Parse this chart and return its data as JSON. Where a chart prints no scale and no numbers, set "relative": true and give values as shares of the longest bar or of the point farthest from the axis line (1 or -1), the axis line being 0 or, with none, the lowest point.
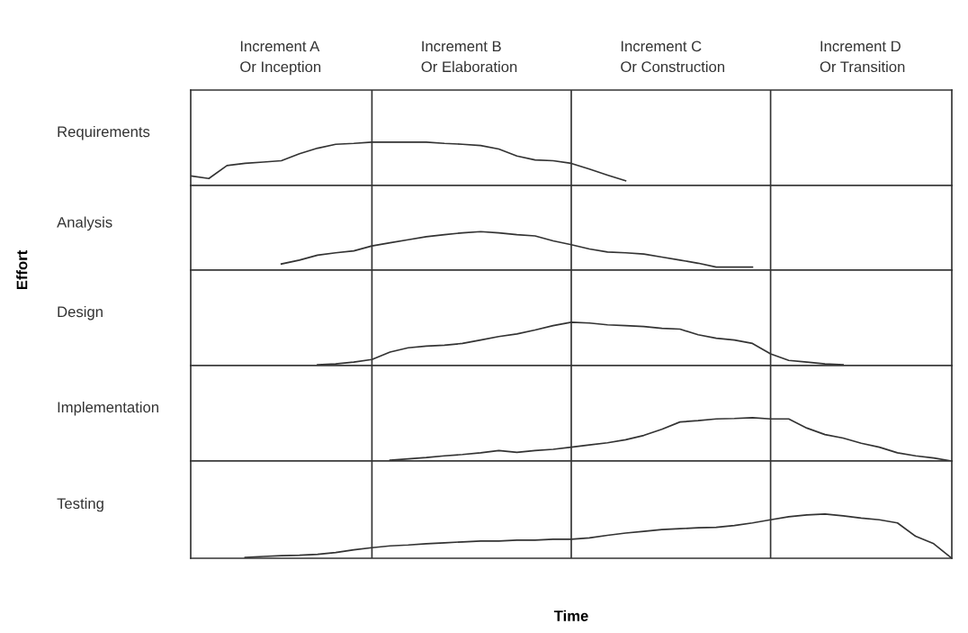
{
  "chart_data": [
    {
      "type": "line",
      "relative": true,
      "ylabel": "Requirements",
      "categories": [
        null,
        null,
        null,
        null,
        null,
        null,
        null,
        null,
        null,
        null,
        null,
        null,
        null,
        null,
        null,
        null,
        null,
        null,
        null,
        null,
        null,
        null,
        null,
        null,
        null,
        null,
        null,
        null,
        null,
        null,
        null,
        null,
        null,
        null,
        null,
        null,
        null,
        null,
        null,
        null,
        null,
        null,
        null
      ],
      "series": [
        {
          "color": "#333333",
          "values": [
            0.22,
            0.16,
            0.46,
            0.51,
            0.54,
            0.57,
            0.73,
            0.86,
            0.95,
            0.97,
            1,
            1,
            1,
            1,
            0.97,
            0.95,
            0.92,
            0.84,
            0.68,
            0.59,
            0.57,
            0.51,
            0.38,
            0.24,
            0.11,
            null,
            null,
            null,
            null,
            null,
            null,
            null,
            null,
            null,
            null,
            null,
            null,
            null,
            null,
            null,
            null,
            null,
            null
          ]
        }
      ],
      "grid": "x",
      "annotations": [
        "Increment A\nOr Inception",
        "Increment B\nOr Elaboration",
        "Increment C\nOr Construction",
        "Increment D\nOr Transition"
      ]
    },
    {
      "type": "line",
      "relative": true,
      "ylabel": "Analysis",
      "categories": [
        null,
        null,
        null,
        null,
        null,
        null,
        null,
        null,
        null,
        null,
        null,
        null,
        null,
        null,
        null,
        null,
        null,
        null,
        null,
        null,
        null,
        null,
        null,
        null,
        null,
        null,
        null,
        null,
        null,
        null,
        null,
        null,
        null,
        null,
        null,
        null,
        null,
        null,
        null,
        null,
        null,
        null,
        null
      ],
      "series": [
        {
          "color": "#333333",
          "values": [
            null,
            null,
            null,
            null,
            null,
            0.16,
            0.26,
            0.39,
            0.45,
            0.5,
            0.63,
            0.71,
            0.79,
            0.87,
            0.92,
            0.97,
            1,
            0.97,
            0.92,
            0.89,
            0.76,
            0.66,
            0.55,
            0.47,
            0.45,
            0.42,
            0.34,
            0.26,
            0.18,
            0.08,
            0.08,
            0.08,
            null,
            null,
            null,
            null,
            null,
            null,
            null,
            null,
            null,
            null,
            null
          ]
        }
      ],
      "grid": "x"
    },
    {
      "type": "line",
      "relative": true,
      "ylabel": "Design",
      "categories": [
        null,
        null,
        null,
        null,
        null,
        null,
        null,
        null,
        null,
        null,
        null,
        null,
        null,
        null,
        null,
        null,
        null,
        null,
        null,
        null,
        null,
        null,
        null,
        null,
        null,
        null,
        null,
        null,
        null,
        null,
        null,
        null,
        null,
        null,
        null,
        null,
        null,
        null,
        null,
        null,
        null,
        null,
        null
      ],
      "series": [
        {
          "color": "#333333",
          "values": [
            null,
            null,
            null,
            null,
            null,
            null,
            null,
            0.02,
            0.04,
            0.08,
            0.14,
            0.31,
            0.41,
            0.45,
            0.47,
            0.51,
            0.59,
            0.67,
            0.73,
            0.82,
            0.92,
            1,
            0.98,
            0.94,
            0.92,
            0.9,
            0.86,
            0.84,
            0.71,
            0.63,
            0.59,
            0.51,
            0.27,
            0.12,
            0.08,
            0.04,
            0.02,
            null,
            null,
            null,
            null,
            null,
            null
          ]
        }
      ],
      "grid": "x",
      "annotations": [
        "Effort"
      ]
    },
    {
      "type": "line",
      "relative": true,
      "ylabel": "Implementation",
      "categories": [
        null,
        null,
        null,
        null,
        null,
        null,
        null,
        null,
        null,
        null,
        null,
        null,
        null,
        null,
        null,
        null,
        null,
        null,
        null,
        null,
        null,
        null,
        null,
        null,
        null,
        null,
        null,
        null,
        null,
        null,
        null,
        null,
        null,
        null,
        null,
        null,
        null,
        null,
        null,
        null,
        null,
        null,
        null
      ],
      "series": [
        {
          "color": "#333333",
          "values": [
            null,
            null,
            null,
            null,
            null,
            null,
            null,
            null,
            null,
            null,
            null,
            0.02,
            0.05,
            0.08,
            0.12,
            0.15,
            0.19,
            0.24,
            0.2,
            0.24,
            0.27,
            0.32,
            0.37,
            0.42,
            0.49,
            0.59,
            0.73,
            0.9,
            0.93,
            0.97,
            0.98,
            1,
            0.97,
            0.97,
            0.76,
            0.61,
            0.53,
            0.41,
            0.32,
            0.19,
            0.12,
            0.07,
            0
          ]
        }
      ],
      "grid": "x"
    },
    {
      "type": "line",
      "relative": true,
      "ylabel": "Testing",
      "xlabel": "Time",
      "categories": [
        null,
        null,
        null,
        null,
        null,
        null,
        null,
        null,
        null,
        null,
        null,
        null,
        null,
        null,
        null,
        null,
        null,
        null,
        null,
        null,
        null,
        null,
        null,
        null,
        null,
        null,
        null,
        null,
        null,
        null,
        null,
        null,
        null,
        null,
        null,
        null,
        null,
        null,
        null,
        null,
        null,
        null,
        null
      ],
      "series": [
        {
          "color": "#333333",
          "values": [
            null,
            null,
            null,
            0.02,
            0.04,
            0.06,
            0.07,
            0.09,
            0.13,
            0.19,
            0.24,
            0.28,
            0.3,
            0.33,
            0.35,
            0.37,
            0.39,
            0.39,
            0.41,
            0.41,
            0.43,
            0.43,
            0.46,
            0.52,
            0.57,
            0.61,
            0.65,
            0.67,
            0.69,
            0.7,
            0.74,
            0.8,
            0.87,
            0.94,
            0.98,
            1,
            0.96,
            0.91,
            0.87,
            0.8,
            0.5,
            0.33,
            0
          ]
        }
      ],
      "grid": "x"
    }
  ]
}
